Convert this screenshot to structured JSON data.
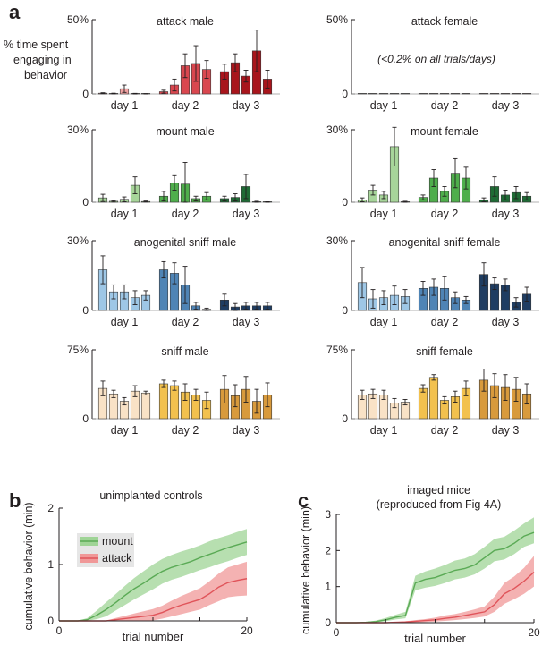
{
  "labels": {
    "panel_a": "a",
    "panel_b": "b",
    "panel_c": "c",
    "ylabel_a": [
      "% time spent",
      "engaging in",
      "behavior"
    ],
    "note_attack_female": "(<0.2% on all trials/days)"
  },
  "colors": {
    "attack": [
      "#f2a3a3",
      "#d9474f",
      "#a8151c"
    ],
    "mount": [
      "#a7d59a",
      "#4fae4c",
      "#1f6b35"
    ],
    "sniff_ano": [
      "#9ec7e6",
      "#4f84b5",
      "#1f3d62"
    ],
    "sniff": [
      "#f9e2c6",
      "#f2c14e",
      "#d89a3c"
    ],
    "mount_line": "#5aaa55",
    "mount_band": "#9fd496",
    "attack_line": "#e0545a",
    "attack_band": "#f09898"
  },
  "chart_data": [
    {
      "type": "bar",
      "title": "attack male",
      "ylim": [
        0,
        50
      ],
      "ytick_labels": [
        "50%",
        "0"
      ],
      "categories": [
        "day 1",
        "day 2",
        "day 3"
      ],
      "values": [
        [
          0.5,
          0.3,
          3.5,
          0.2,
          0.1
        ],
        [
          1.5,
          6,
          19,
          20.5,
          16.5
        ],
        [
          15,
          21,
          12,
          29,
          10
        ]
      ],
      "errors": [
        [
          0.3,
          0.2,
          2.5,
          0.2,
          0.1
        ],
        [
          1,
          4,
          8,
          12,
          6
        ],
        [
          5,
          6,
          4,
          14,
          6
        ]
      ]
    },
    {
      "type": "bar",
      "title": "attack female",
      "ylim": [
        0,
        50
      ],
      "ytick_labels": [
        "50%",
        "0"
      ],
      "categories": [
        "day 1",
        "day 2",
        "day 3"
      ],
      "values": [
        [
          0.1,
          0.1,
          0.1,
          0.1,
          0.1
        ],
        [
          0.1,
          0.1,
          0.1,
          0.1,
          0.1
        ],
        [
          0.1,
          0.1,
          0.1,
          0.1,
          0.1
        ]
      ],
      "errors": [
        [
          0,
          0,
          0,
          0,
          0
        ],
        [
          0,
          0,
          0,
          0,
          0
        ],
        [
          0,
          0,
          0,
          0,
          0
        ]
      ]
    },
    {
      "type": "bar",
      "title": "mount male",
      "ylim": [
        0,
        30
      ],
      "ytick_labels": [
        "30%",
        "0"
      ],
      "categories": [
        "day 1",
        "day 2",
        "day 3"
      ],
      "values": [
        [
          1.8,
          0.4,
          1.2,
          7,
          0.3
        ],
        [
          2.5,
          8,
          7.5,
          1.5,
          2.5
        ],
        [
          1.5,
          2,
          6.5,
          0.2,
          0.1
        ]
      ],
      "errors": [
        [
          1.5,
          0.3,
          1,
          3.5,
          0.2
        ],
        [
          2,
          3,
          9,
          1,
          1.5
        ],
        [
          1,
          1.5,
          5,
          0.2,
          0.1
        ]
      ]
    },
    {
      "type": "bar",
      "title": "mount female",
      "ylim": [
        0,
        30
      ],
      "ytick_labels": [
        "30%",
        "0"
      ],
      "categories": [
        "day 1",
        "day 2",
        "day 3"
      ],
      "values": [
        [
          1,
          5,
          3,
          23,
          0.2
        ],
        [
          2,
          10,
          4.5,
          12,
          10
        ],
        [
          1,
          6.5,
          3,
          4,
          2.5
        ]
      ],
      "errors": [
        [
          0.8,
          2,
          1.5,
          8,
          0.2
        ],
        [
          1,
          3.5,
          2,
          6,
          4.5
        ],
        [
          0.8,
          4,
          2,
          2.5,
          1.5
        ]
      ]
    },
    {
      "type": "bar",
      "title": "anogenital sniff male",
      "ylim": [
        0,
        30
      ],
      "ytick_labels": [
        "30%",
        "0"
      ],
      "categories": [
        "day 1",
        "day 2",
        "day 3"
      ],
      "values": [
        [
          17.5,
          8,
          8,
          5.5,
          6.5
        ],
        [
          17.5,
          16,
          11,
          2,
          0.5
        ],
        [
          4.5,
          1.5,
          2,
          2,
          2
        ]
      ],
      "errors": [
        [
          6,
          3,
          3,
          3,
          2
        ],
        [
          3.5,
          4.5,
          8,
          1.5,
          0.5
        ],
        [
          2.5,
          1.5,
          1.5,
          1.5,
          1.5
        ]
      ]
    },
    {
      "type": "bar",
      "title": "anogenital sniff female",
      "ylim": [
        0,
        30
      ],
      "ytick_labels": [
        "30%",
        "0"
      ],
      "categories": [
        "day 1",
        "day 2",
        "day 3"
      ],
      "values": [
        [
          12,
          5,
          5.5,
          6.5,
          6
        ],
        [
          9.5,
          10,
          9.5,
          5.5,
          4.5
        ],
        [
          15.5,
          11.5,
          11,
          3.5,
          7
        ]
      ],
      "errors": [
        [
          6.5,
          4,
          3,
          4,
          3
        ],
        [
          3,
          3.5,
          5,
          2.5,
          1.5
        ],
        [
          5,
          2.5,
          2.5,
          2,
          3
        ]
      ]
    },
    {
      "type": "bar",
      "title": "sniff male",
      "ylim": [
        0,
        75
      ],
      "ytick_labels": [
        "75%",
        "0"
      ],
      "categories": [
        "day 1",
        "day 2",
        "day 3"
      ],
      "values": [
        [
          33,
          27,
          19,
          30,
          28
        ],
        [
          38,
          36,
          29,
          26,
          20
        ],
        [
          32,
          25,
          32,
          19,
          26
        ]
      ],
      "errors": [
        [
          8,
          4,
          4,
          6,
          2
        ],
        [
          4,
          5,
          9,
          6,
          9
        ],
        [
          15,
          12,
          14,
          13,
          13
        ]
      ]
    },
    {
      "type": "bar",
      "title": "sniff female",
      "ylim": [
        0,
        75
      ],
      "ytick_labels": [
        "75%",
        "0"
      ],
      "categories": [
        "day 1",
        "day 2",
        "day 3"
      ],
      "values": [
        [
          26,
          27,
          26,
          17,
          18
        ],
        [
          33,
          45,
          20,
          24,
          33
        ],
        [
          42,
          36,
          34,
          32,
          27
        ]
      ],
      "errors": [
        [
          5,
          5,
          5,
          5,
          3
        ],
        [
          4,
          3,
          4,
          6,
          8
        ],
        [
          12,
          13,
          14,
          13,
          11
        ]
      ]
    },
    {
      "type": "line",
      "title": "unimplanted controls",
      "xlabel": "trial number",
      "ylabel": "cumulative behavior (min)",
      "xlim": [
        0,
        20
      ],
      "ylim": [
        0,
        2
      ],
      "xtick_labels": [
        "0",
        "20"
      ],
      "ytick_labels": [
        "0",
        "1",
        "2"
      ],
      "x": [
        0,
        1,
        2,
        3,
        4,
        5,
        6,
        7,
        8,
        9,
        10,
        11,
        12,
        13,
        14,
        15,
        16,
        17,
        18,
        19,
        20
      ],
      "legend": [
        "mount",
        "attack"
      ],
      "series": [
        {
          "name": "mount",
          "mean": [
            0,
            0,
            0,
            0.02,
            0.1,
            0.2,
            0.32,
            0.45,
            0.57,
            0.67,
            0.78,
            0.88,
            0.95,
            1.0,
            1.05,
            1.12,
            1.18,
            1.24,
            1.3,
            1.35,
            1.4
          ],
          "lower": [
            0,
            0,
            0,
            0,
            0.03,
            0.08,
            0.18,
            0.28,
            0.38,
            0.47,
            0.56,
            0.66,
            0.73,
            0.78,
            0.84,
            0.9,
            0.95,
            1.01,
            1.06,
            1.12,
            1.17
          ],
          "upper": [
            0,
            0,
            0,
            0.05,
            0.18,
            0.33,
            0.47,
            0.62,
            0.76,
            0.88,
            1.0,
            1.1,
            1.17,
            1.23,
            1.28,
            1.34,
            1.41,
            1.47,
            1.52,
            1.58,
            1.63
          ]
        },
        {
          "name": "attack",
          "mean": [
            0,
            0,
            0,
            0,
            0,
            0,
            0.02,
            0.04,
            0.06,
            0.08,
            0.1,
            0.15,
            0.22,
            0.28,
            0.33,
            0.38,
            0.48,
            0.6,
            0.68,
            0.72,
            0.75
          ],
          "lower": [
            0,
            0,
            0,
            0,
            0,
            0,
            0,
            0,
            0,
            0,
            0.01,
            0.04,
            0.08,
            0.12,
            0.16,
            0.2,
            0.28,
            0.35,
            0.42,
            0.44,
            0.45
          ],
          "upper": [
            0,
            0,
            0,
            0,
            0,
            0,
            0.05,
            0.09,
            0.13,
            0.17,
            0.21,
            0.27,
            0.36,
            0.44,
            0.51,
            0.58,
            0.7,
            0.84,
            0.95,
            1.0,
            1.05
          ]
        }
      ]
    },
    {
      "type": "line",
      "title": "imaged mice",
      "subtitle": "(reproduced from Fig 4A)",
      "xlabel": "trial number",
      "ylabel": "cumulative behavior (min)",
      "xlim": [
        0,
        20
      ],
      "ylim": [
        0,
        3
      ],
      "xtick_labels": [
        "0",
        "20"
      ],
      "ytick_labels": [
        "0",
        "1",
        "2",
        "3"
      ],
      "x": [
        0,
        1,
        2,
        3,
        4,
        5,
        6,
        7,
        8,
        9,
        10,
        11,
        12,
        13,
        14,
        15,
        16,
        17,
        18,
        19,
        20
      ],
      "series": [
        {
          "name": "mount",
          "mean": [
            0,
            0,
            0,
            0.01,
            0.03,
            0.08,
            0.15,
            0.2,
            1.1,
            1.2,
            1.25,
            1.35,
            1.45,
            1.5,
            1.6,
            1.8,
            2.0,
            2.05,
            2.2,
            2.4,
            2.5
          ],
          "lower": [
            0,
            0,
            0,
            0,
            0.01,
            0.04,
            0.09,
            0.12,
            0.9,
            0.97,
            1.02,
            1.1,
            1.2,
            1.25,
            1.34,
            1.5,
            1.7,
            1.75,
            1.9,
            2.1,
            2.2
          ],
          "upper": [
            0,
            0,
            0,
            0.02,
            0.06,
            0.13,
            0.22,
            0.3,
            1.3,
            1.42,
            1.5,
            1.6,
            1.72,
            1.78,
            1.9,
            2.1,
            2.32,
            2.38,
            2.55,
            2.75,
            2.92
          ]
        },
        {
          "name": "attack",
          "mean": [
            0,
            0,
            0,
            0,
            0,
            0,
            0.01,
            0.02,
            0.04,
            0.06,
            0.08,
            0.12,
            0.15,
            0.2,
            0.25,
            0.3,
            0.5,
            0.8,
            0.95,
            1.15,
            1.4
          ],
          "lower": [
            0,
            0,
            0,
            0,
            0,
            0,
            0,
            0,
            0.01,
            0.02,
            0.03,
            0.05,
            0.07,
            0.1,
            0.13,
            0.17,
            0.3,
            0.52,
            0.65,
            0.8,
            1.0
          ],
          "upper": [
            0,
            0,
            0,
            0,
            0,
            0,
            0.02,
            0.04,
            0.07,
            0.1,
            0.14,
            0.2,
            0.24,
            0.3,
            0.37,
            0.45,
            0.72,
            1.1,
            1.28,
            1.52,
            1.85
          ]
        }
      ]
    }
  ]
}
